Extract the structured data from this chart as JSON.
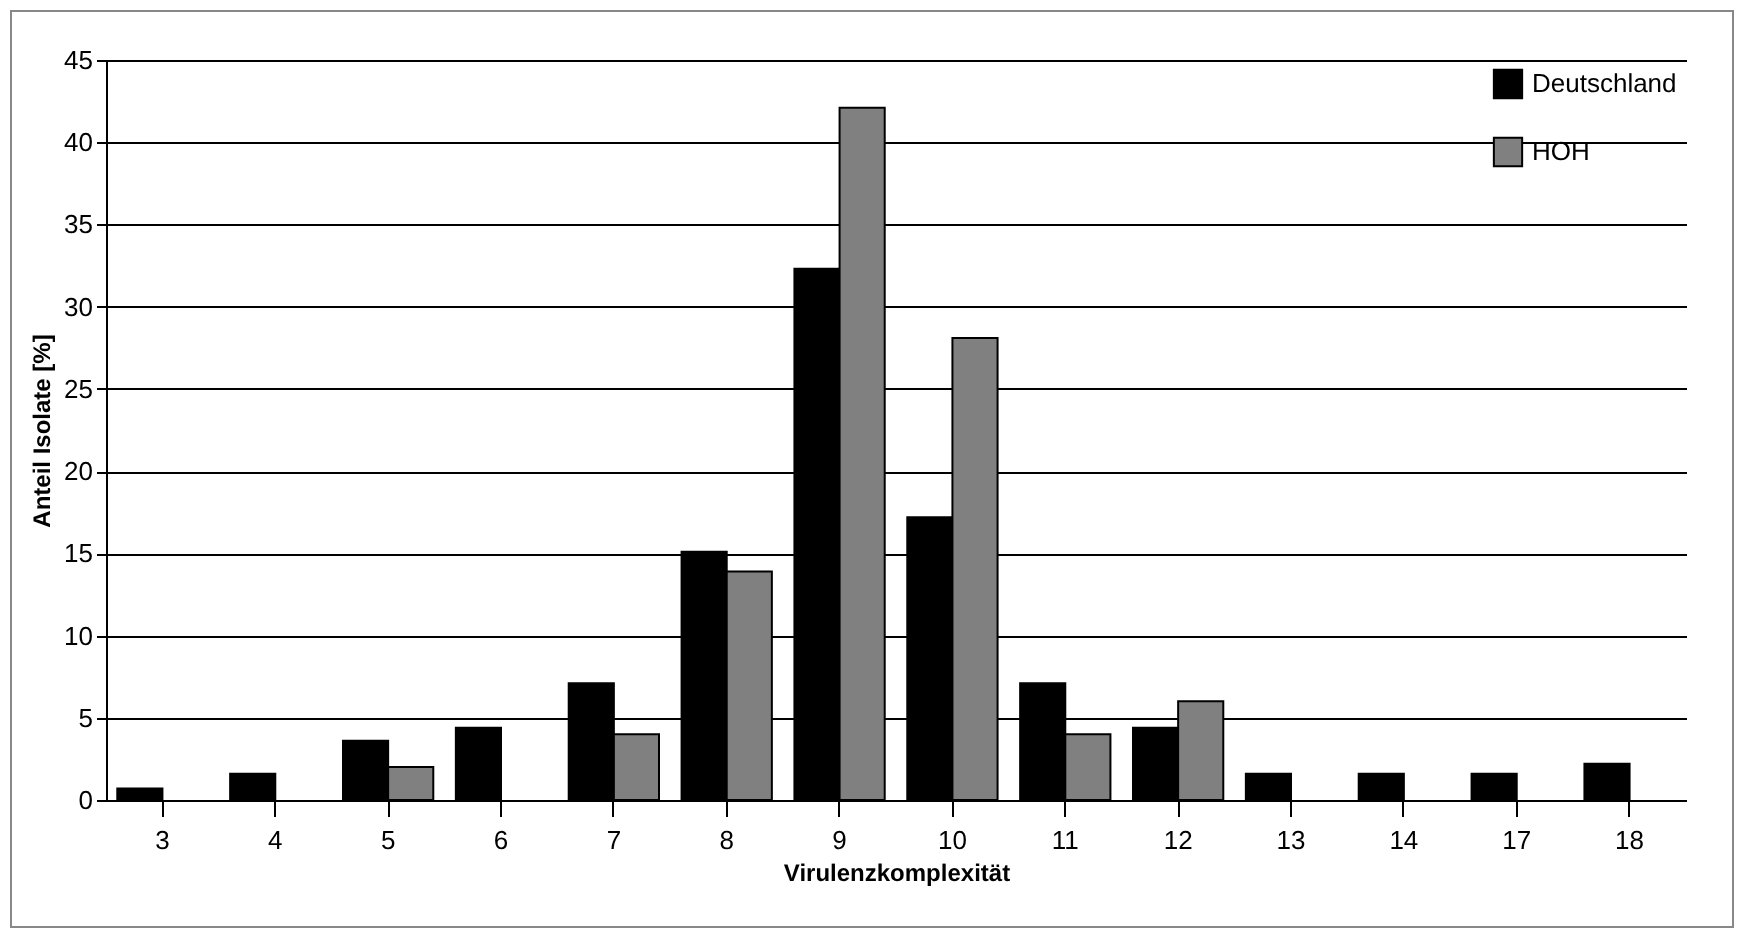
{
  "chart_data": {
    "type": "bar",
    "xlabel": "Virulenzkomplexität",
    "ylabel": "Anteil Isolate [%]",
    "categories": [
      "3",
      "4",
      "5",
      "6",
      "7",
      "8",
      "9",
      "10",
      "11",
      "12",
      "13",
      "14",
      "17",
      "18"
    ],
    "series": [
      {
        "name": "Deutschland",
        "color": "#000000",
        "values": [
          0.7,
          1.6,
          3.6,
          4.4,
          7.1,
          15.1,
          32.3,
          17.2,
          7.1,
          4.4,
          1.6,
          1.6,
          1.6,
          2.2
        ]
      },
      {
        "name": "HOH",
        "color": "#808080",
        "values": [
          null,
          null,
          2.0,
          null,
          4.0,
          13.9,
          42.1,
          28.1,
          4.0,
          6.0,
          null,
          null,
          null,
          null
        ]
      }
    ],
    "ylim": [
      0,
      45
    ],
    "yticks": [
      0,
      5,
      10,
      15,
      20,
      25,
      30,
      35,
      40,
      45
    ],
    "grid": "y",
    "legend": "top right"
  }
}
